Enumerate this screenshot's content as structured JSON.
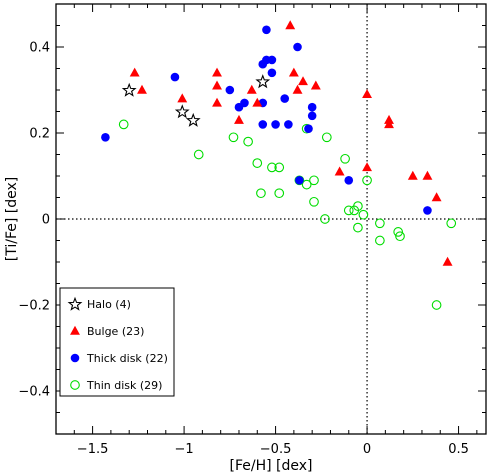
{
  "chart_data": {
    "type": "scatter",
    "xlabel": "[Fe/H] [dex]",
    "ylabel": "[Ti/Fe] [dex]",
    "xlim": [
      -1.7,
      0.65
    ],
    "ylim": [
      -0.5,
      0.5
    ],
    "x_ticks": [
      -1.5,
      -1,
      -0.5,
      0,
      0.5
    ],
    "x_tick_labels": [
      "−1.5",
      "−1",
      "−0.5",
      "0",
      "0.5"
    ],
    "y_ticks": [
      -0.4,
      -0.2,
      0,
      0.2,
      0.4
    ],
    "y_tick_labels": [
      "−0.4",
      "−0.2",
      "0",
      "0.2",
      "0.4"
    ],
    "reference_lines": {
      "x": 0,
      "y": 0,
      "style": "dotted"
    },
    "legend_position": "bottom-left",
    "series": [
      {
        "name": "Halo (4)",
        "marker": "star-open",
        "color": "#000000",
        "points": [
          [
            -1.3,
            0.3
          ],
          [
            -1.01,
            0.25
          ],
          [
            -0.95,
            0.23
          ],
          [
            -0.57,
            0.32
          ]
        ]
      },
      {
        "name": "Bulge (23)",
        "marker": "triangle",
        "color": "#ff0000",
        "points": [
          [
            -1.27,
            0.34
          ],
          [
            -1.23,
            0.3
          ],
          [
            -1.01,
            0.28
          ],
          [
            -0.82,
            0.34
          ],
          [
            -0.82,
            0.31
          ],
          [
            -0.82,
            0.27
          ],
          [
            -0.7,
            0.23
          ],
          [
            -0.63,
            0.3
          ],
          [
            -0.6,
            0.27
          ],
          [
            -0.42,
            0.45
          ],
          [
            -0.4,
            0.34
          ],
          [
            -0.38,
            0.3
          ],
          [
            -0.35,
            0.32
          ],
          [
            -0.28,
            0.31
          ],
          [
            -0.15,
            0.11
          ],
          [
            0.0,
            0.12
          ],
          [
            0.0,
            0.29
          ],
          [
            0.12,
            0.23
          ],
          [
            0.12,
            0.22
          ],
          [
            0.25,
            0.1
          ],
          [
            0.33,
            0.1
          ],
          [
            0.38,
            0.05
          ],
          [
            0.44,
            -0.1
          ]
        ]
      },
      {
        "name": "Thick disk (22)",
        "marker": "circle",
        "color": "#0000ff",
        "points": [
          [
            -1.43,
            0.19
          ],
          [
            -1.05,
            0.33
          ],
          [
            -0.75,
            0.3
          ],
          [
            -0.7,
            0.26
          ],
          [
            -0.67,
            0.27
          ],
          [
            -0.57,
            0.36
          ],
          [
            -0.55,
            0.44
          ],
          [
            -0.52,
            0.37
          ],
          [
            -0.55,
            0.37
          ],
          [
            -0.52,
            0.34
          ],
          [
            -0.57,
            0.22
          ],
          [
            -0.57,
            0.27
          ],
          [
            -0.5,
            0.22
          ],
          [
            -0.45,
            0.28
          ],
          [
            -0.43,
            0.22
          ],
          [
            -0.38,
            0.4
          ],
          [
            -0.37,
            0.09
          ],
          [
            -0.3,
            0.26
          ],
          [
            -0.3,
            0.24
          ],
          [
            -0.32,
            0.21
          ],
          [
            -0.1,
            0.09
          ],
          [
            0.33,
            0.02
          ]
        ]
      },
      {
        "name": "Thin disk (29)",
        "marker": "circle-open",
        "color": "#00dd00",
        "points": [
          [
            -1.33,
            0.22
          ],
          [
            -0.92,
            0.15
          ],
          [
            -0.73,
            0.19
          ],
          [
            -0.65,
            0.18
          ],
          [
            -0.6,
            0.13
          ],
          [
            -0.58,
            0.06
          ],
          [
            -0.52,
            0.12
          ],
          [
            -0.48,
            0.12
          ],
          [
            -0.48,
            0.06
          ],
          [
            -0.37,
            0.09
          ],
          [
            -0.33,
            0.21
          ],
          [
            -0.33,
            0.08
          ],
          [
            -0.29,
            0.09
          ],
          [
            -0.29,
            0.04
          ],
          [
            -0.23,
            0.0
          ],
          [
            -0.22,
            0.19
          ],
          [
            -0.12,
            0.14
          ],
          [
            -0.1,
            0.02
          ],
          [
            -0.07,
            0.02
          ],
          [
            -0.05,
            0.03
          ],
          [
            -0.05,
            -0.02
          ],
          [
            -0.02,
            0.01
          ],
          [
            0.0,
            0.09
          ],
          [
            0.07,
            -0.05
          ],
          [
            0.07,
            -0.01
          ],
          [
            0.17,
            -0.03
          ],
          [
            0.18,
            -0.04
          ],
          [
            0.38,
            -0.2
          ],
          [
            0.46,
            -0.01
          ]
        ]
      }
    ]
  }
}
